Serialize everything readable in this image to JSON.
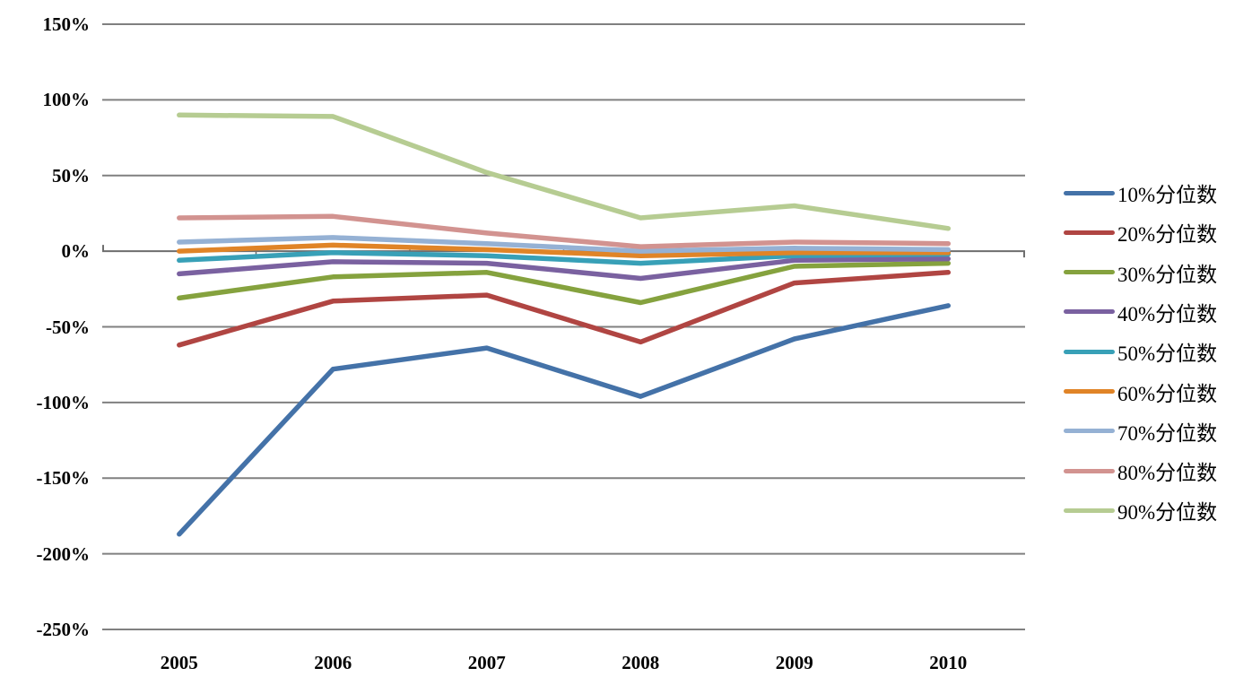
{
  "chart_data": {
    "type": "line",
    "title": "",
    "xlabel": "",
    "ylabel": "",
    "grid": true,
    "legend_position": "right",
    "categories": [
      "2005",
      "2006",
      "2007",
      "2008",
      "2009",
      "2010"
    ],
    "y_axis": {
      "min": -250,
      "max": 150,
      "step": 50,
      "unit": "%",
      "tick_labels": [
        "150%",
        "100%",
        "50%",
        "0%",
        "-50%",
        "-100%",
        "-150%",
        "-200%",
        "-250%"
      ],
      "tick_values": [
        150,
        100,
        50,
        0,
        -50,
        -100,
        -150,
        -200,
        -250
      ]
    },
    "series": [
      {
        "name": "10%分位数",
        "color": "#4472A8",
        "values": [
          -187,
          -78,
          -64,
          -96,
          -58,
          -36
        ]
      },
      {
        "name": "20%分位数",
        "color": "#B04542",
        "values": [
          -62,
          -33,
          -29,
          -60,
          -21,
          -14
        ]
      },
      {
        "name": "30%分位数",
        "color": "#85A23E",
        "values": [
          -31,
          -17,
          -14,
          -34,
          -10,
          -8
        ]
      },
      {
        "name": "40%分位数",
        "color": "#7A61A0",
        "values": [
          -15,
          -7,
          -8,
          -18,
          -6,
          -5
        ]
      },
      {
        "name": "50%分位数",
        "color": "#38A0B7",
        "values": [
          -6,
          -1,
          -3,
          -8,
          -3,
          -2
        ]
      },
      {
        "name": "60%分位数",
        "color": "#E08427",
        "values": [
          0,
          4,
          1,
          -3,
          -1,
          -1
        ]
      },
      {
        "name": "70%分位数",
        "color": "#95B1D4",
        "values": [
          6,
          9,
          5,
          0,
          2,
          1
        ]
      },
      {
        "name": "80%分位数",
        "color": "#D29390",
        "values": [
          22,
          23,
          12,
          3,
          6,
          5
        ]
      },
      {
        "name": "90%分位数",
        "color": "#B6CC92",
        "values": [
          90,
          89,
          52,
          22,
          30,
          15
        ]
      }
    ],
    "colors": {
      "gridline": "#808080",
      "axis_line": "#6E6E6E",
      "text": "#000000",
      "background": "#FFFFFF"
    }
  }
}
